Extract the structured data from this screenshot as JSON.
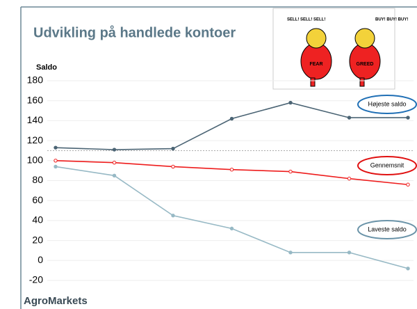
{
  "chart_data": {
    "type": "line",
    "title": "Udvikling på handlede kontoer",
    "y_label": "Saldo",
    "footer": "AgroMarkets",
    "categories": [
      null,
      null,
      null,
      null,
      null,
      null,
      null
    ],
    "series": [
      {
        "name": "Højeste saldo",
        "color": "#4b6474",
        "label_color": "#1f6fb5",
        "marker": "filled",
        "values": [
          113,
          111,
          112,
          142,
          158,
          143,
          143
        ]
      },
      {
        "name": "Gennemsnit",
        "color": "#ee1c1c",
        "label_color": "#e01010",
        "marker": "hollow",
        "values": [
          100,
          98,
          94,
          91,
          89,
          82,
          76
        ]
      },
      {
        "name": "Laveste saldo",
        "color": "#97b9c5",
        "label_color": "#6a93a8",
        "marker": "filled",
        "values": [
          94,
          85,
          45,
          32,
          8,
          8,
          -8
        ]
      }
    ],
    "reference_line": 110,
    "ylim": [
      -20,
      180
    ],
    "yticks": [
      -20,
      0,
      20,
      40,
      60,
      80,
      100,
      120,
      140,
      160,
      180
    ],
    "grid": true,
    "cartoon_texts": [
      "SELL! SELL! SELL!",
      "BUY! BUY! BUY!",
      "FEAR",
      "GREED"
    ]
  }
}
